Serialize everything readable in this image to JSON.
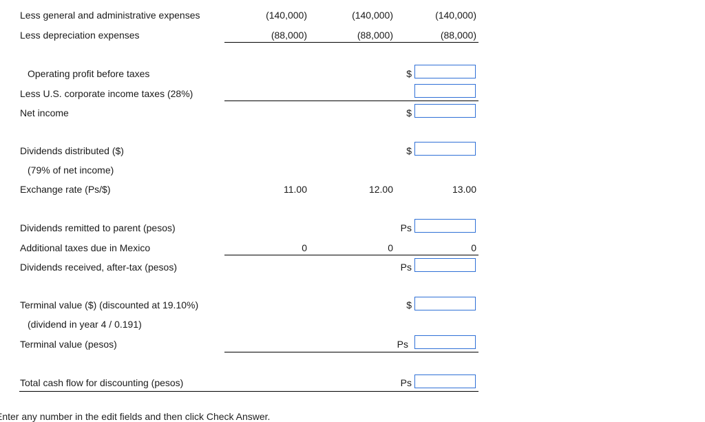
{
  "rows": {
    "ga_label": "Less general and administrative expenses",
    "ga_y1": "(140,000)",
    "ga_y2": "(140,000)",
    "ga_y3": "(140,000)",
    "dep_label": "Less depreciation expenses",
    "dep_y1": "(88,000)",
    "dep_y2": "(88,000)",
    "dep_y3": "(88,000)",
    "op_label": "Operating profit before taxes",
    "tax_label": "Less U.S. corporate income taxes (28%)",
    "ni_label": "Net income",
    "div_label": "Dividends distributed ($)",
    "div_sub": "(79% of net income)",
    "fx_label": "Exchange rate (Ps/$)",
    "fx_y1": "11.00",
    "fx_y2": "12.00",
    "fx_y3": "13.00",
    "rem_label": "Dividends remitted to parent (pesos)",
    "addtax_label": "Additional taxes due in Mexico",
    "addtax_y1": "0",
    "addtax_y2": "0",
    "addtax_y3": "0",
    "recv_label": "Dividends received, after-tax (pesos)",
    "tv_label": "Terminal value ($) (discounted at 19.10%)",
    "tv_sub": "(dividend in year 4 / 0.191)",
    "tvp_label": "Terminal value (pesos)",
    "total_label": "Total cash flow for discounting (pesos)"
  },
  "currency": {
    "usd": "$",
    "ps": "Ps"
  },
  "inputs": {
    "op_profit": "",
    "us_tax": "",
    "net_income": "",
    "dividends": "",
    "remitted": "",
    "received": "",
    "terminal_usd": "",
    "terminal_ps": "",
    "total_cf": ""
  },
  "footer": {
    "instruction": "Enter any number in the edit fields and then click Check Answer."
  }
}
